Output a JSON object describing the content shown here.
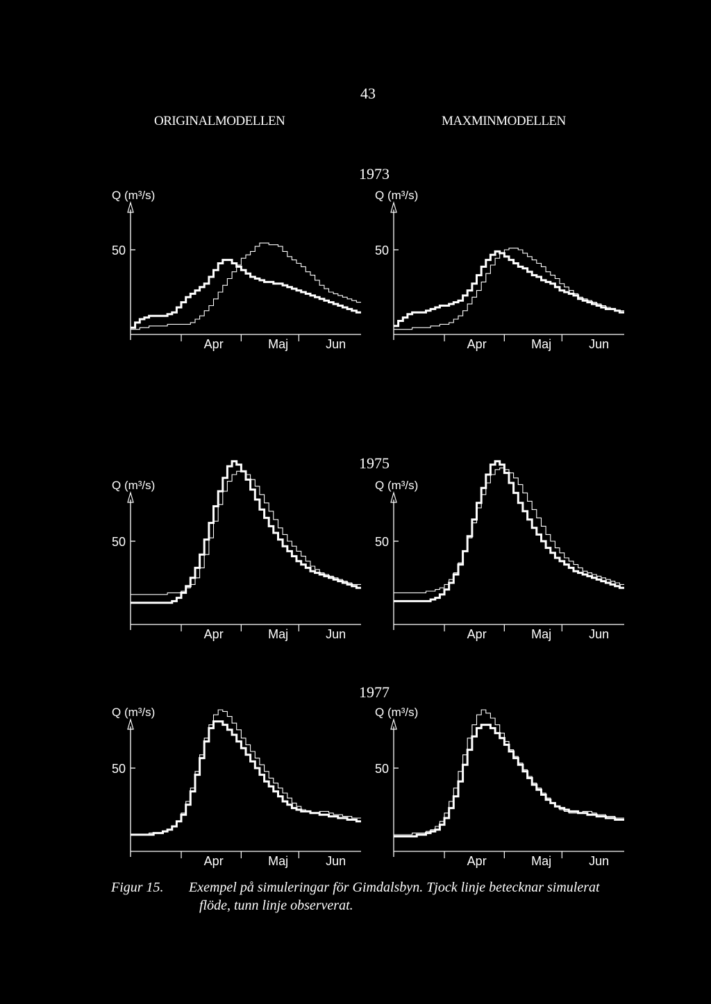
{
  "page_number": "43",
  "columns": {
    "left": "ORIGINALMODELLEN",
    "right": "MAXMINMODELLEN"
  },
  "colors": {
    "background": "#000000",
    "ink": "#ffffff"
  },
  "caption": {
    "label": "Figur 15.",
    "line1": "Exempel på simuleringar för Gimdalsbyn. Tjock linje betecknar simulerat",
    "line2": "flöde, tunn linje observerat."
  },
  "chart_data": [
    {
      "type": "line",
      "row": 0,
      "col": 0,
      "year": "1973",
      "ylabel": "Q (m³/s)",
      "ytick": "50",
      "x_ticks": [
        "Apr",
        "Maj",
        "Jun"
      ],
      "series": [
        {
          "line": "thin",
          "values": [
            3,
            3,
            4,
            4,
            5,
            5,
            5,
            5,
            6,
            6,
            6,
            6,
            6,
            7,
            9,
            11,
            14,
            17,
            21,
            25,
            29,
            33,
            37,
            41,
            45,
            47,
            49,
            52,
            54,
            54,
            53,
            53,
            52,
            49,
            46,
            44,
            42,
            40,
            37,
            35,
            32,
            29,
            27,
            25,
            24,
            23,
            22,
            21,
            20,
            19
          ]
        },
        {
          "line": "thick",
          "values": [
            4,
            7,
            9,
            10,
            11,
            11,
            11,
            11,
            12,
            13,
            16,
            19,
            22,
            24,
            26,
            28,
            30,
            34,
            38,
            42,
            44,
            44,
            42,
            40,
            38,
            36,
            34,
            33,
            32,
            31,
            31,
            30,
            30,
            29,
            28,
            27,
            26,
            25,
            24,
            23,
            22,
            21,
            20,
            19,
            18,
            17,
            16,
            15,
            14,
            13
          ]
        }
      ]
    },
    {
      "type": "line",
      "row": 0,
      "col": 1,
      "year": "1973",
      "ylabel": "Q (m³/s)",
      "ytick": "50",
      "x_ticks": [
        "Apr",
        "Maj",
        "Jun"
      ],
      "series": [
        {
          "line": "thin",
          "values": [
            3,
            3,
            3,
            3,
            4,
            4,
            4,
            4,
            5,
            5,
            6,
            6,
            7,
            9,
            11,
            14,
            18,
            22,
            26,
            31,
            36,
            41,
            45,
            48,
            50,
            51,
            51,
            50,
            48,
            46,
            44,
            42,
            40,
            37,
            35,
            33,
            30,
            28,
            26,
            24,
            22,
            21,
            20,
            19,
            18,
            17,
            16,
            15,
            14,
            14
          ]
        },
        {
          "line": "thick",
          "values": [
            5,
            8,
            10,
            12,
            13,
            13,
            13,
            14,
            15,
            16,
            17,
            17,
            18,
            19,
            20,
            23,
            26,
            30,
            35,
            40,
            44,
            47,
            49,
            48,
            46,
            44,
            42,
            40,
            39,
            37,
            35,
            34,
            32,
            31,
            30,
            28,
            26,
            25,
            24,
            23,
            21,
            20,
            19,
            18,
            17,
            16,
            15,
            15,
            14,
            13
          ]
        }
      ]
    },
    {
      "type": "line",
      "row": 1,
      "col": 0,
      "year": "1975",
      "ylabel": "Q (m³/s)",
      "ytick": "50",
      "x_ticks": [
        "Apr",
        "Maj",
        "Jun"
      ],
      "series": [
        {
          "line": "thin",
          "values": [
            18,
            18,
            18,
            18,
            18,
            18,
            18,
            18,
            19,
            19,
            19,
            20,
            22,
            24,
            28,
            34,
            42,
            52,
            62,
            72,
            80,
            86,
            90,
            92,
            92,
            90,
            87,
            83,
            78,
            73,
            68,
            63,
            58,
            54,
            50,
            47,
            44,
            41,
            38,
            35,
            33,
            31,
            30,
            29,
            28,
            27,
            26,
            25,
            24,
            24
          ]
        },
        {
          "line": "thick",
          "values": [
            13,
            13,
            13,
            13,
            13,
            13,
            13,
            13,
            13,
            14,
            16,
            19,
            23,
            28,
            34,
            42,
            51,
            61,
            71,
            80,
            88,
            95,
            98,
            96,
            92,
            87,
            81,
            75,
            69,
            64,
            59,
            55,
            51,
            47,
            44,
            41,
            38,
            36,
            34,
            32,
            31,
            30,
            29,
            28,
            27,
            26,
            25,
            24,
            23,
            22
          ]
        }
      ]
    },
    {
      "type": "line",
      "row": 1,
      "col": 1,
      "year": "1975",
      "ylabel": "Q (m³/s)",
      "ytick": "50",
      "x_ticks": [
        "Apr",
        "Maj",
        "Jun"
      ],
      "series": [
        {
          "line": "thin",
          "values": [
            19,
            19,
            19,
            19,
            19,
            19,
            19,
            20,
            20,
            21,
            22,
            24,
            27,
            31,
            37,
            44,
            52,
            61,
            70,
            78,
            85,
            90,
            93,
            94,
            93,
            91,
            88,
            84,
            79,
            74,
            69,
            64,
            59,
            54,
            50,
            46,
            43,
            40,
            38,
            36,
            34,
            32,
            31,
            30,
            29,
            28,
            27,
            26,
            25,
            24
          ]
        },
        {
          "line": "thick",
          "values": [
            14,
            14,
            14,
            14,
            14,
            14,
            14,
            14,
            15,
            16,
            18,
            21,
            25,
            30,
            36,
            44,
            53,
            63,
            73,
            82,
            90,
            96,
            98,
            96,
            91,
            85,
            79,
            73,
            68,
            63,
            58,
            54,
            50,
            46,
            43,
            40,
            38,
            36,
            34,
            32,
            31,
            30,
            29,
            28,
            27,
            26,
            25,
            24,
            23,
            22
          ]
        }
      ]
    },
    {
      "type": "line",
      "row": 2,
      "col": 0,
      "year": "1977",
      "ylabel": "Q (m³/s)",
      "ytick": "50",
      "x_ticks": [
        "Apr",
        "Maj",
        "Jun"
      ],
      "series": [
        {
          "line": "thin",
          "values": [
            10,
            10,
            10,
            10,
            11,
            11,
            11,
            12,
            13,
            15,
            18,
            23,
            30,
            38,
            48,
            58,
            68,
            76,
            82,
            85,
            84,
            81,
            77,
            73,
            68,
            64,
            60,
            56,
            52,
            48,
            44,
            41,
            38,
            35,
            32,
            29,
            27,
            25,
            24,
            23,
            23,
            24,
            24,
            23,
            22,
            22,
            21,
            21,
            20,
            20
          ]
        },
        {
          "line": "thick",
          "values": [
            10,
            10,
            10,
            10,
            10,
            11,
            11,
            12,
            13,
            15,
            18,
            22,
            28,
            36,
            46,
            56,
            66,
            74,
            78,
            78,
            76,
            73,
            70,
            66,
            62,
            58,
            54,
            50,
            46,
            42,
            39,
            36,
            33,
            30,
            28,
            26,
            25,
            24,
            24,
            23,
            23,
            22,
            22,
            21,
            21,
            20,
            20,
            19,
            19,
            18
          ]
        }
      ]
    },
    {
      "type": "line",
      "row": 2,
      "col": 1,
      "year": "1977",
      "ylabel": "Q (m³/s)",
      "ytick": "50",
      "x_ticks": [
        "Apr",
        "Maj",
        "Jun"
      ],
      "series": [
        {
          "line": "thin",
          "values": [
            10,
            10,
            10,
            10,
            11,
            11,
            11,
            12,
            13,
            15,
            18,
            23,
            30,
            38,
            48,
            58,
            68,
            76,
            82,
            85,
            83,
            80,
            76,
            71,
            66,
            61,
            57,
            53,
            49,
            45,
            41,
            38,
            35,
            32,
            29,
            27,
            25,
            24,
            23,
            23,
            23,
            24,
            24,
            23,
            22,
            22,
            21,
            21,
            20,
            20
          ]
        },
        {
          "line": "thick",
          "values": [
            9,
            9,
            9,
            9,
            9,
            10,
            10,
            11,
            12,
            13,
            16,
            20,
            26,
            33,
            42,
            52,
            61,
            69,
            74,
            76,
            76,
            74,
            71,
            68,
            64,
            60,
            56,
            52,
            48,
            44,
            40,
            37,
            34,
            31,
            29,
            27,
            26,
            25,
            24,
            24,
            23,
            23,
            22,
            22,
            21,
            21,
            20,
            20,
            19,
            19
          ]
        }
      ]
    }
  ]
}
